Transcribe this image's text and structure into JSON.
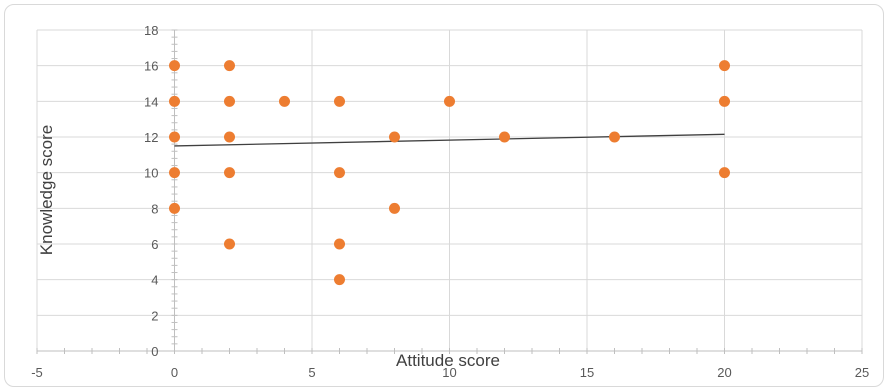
{
  "chart_data": {
    "type": "scatter",
    "title": "",
    "xlabel": "Attitude score",
    "ylabel": "Knowledge score",
    "xlim": [
      -5,
      25
    ],
    "ylim": [
      0,
      18
    ],
    "x_ticks": [
      -5,
      0,
      5,
      10,
      15,
      20,
      25
    ],
    "y_ticks": [
      0,
      2,
      4,
      6,
      8,
      10,
      12,
      14,
      16,
      18
    ],
    "grid": true,
    "legend": "none",
    "marker_color": "#ED7D31",
    "trendline_color": "#404040",
    "series": [
      {
        "x": [
          0,
          0,
          0,
          0,
          0,
          2,
          2,
          2,
          2,
          2,
          4,
          6,
          6,
          6,
          6,
          8,
          8,
          10,
          12,
          16,
          20,
          20,
          20
        ],
        "y": [
          16,
          14,
          12,
          10,
          8,
          16,
          14,
          12,
          10,
          6,
          14,
          14,
          10,
          6,
          4,
          12,
          8,
          14,
          12,
          12,
          16,
          14,
          10
        ]
      }
    ],
    "trendline": {
      "type": "linear",
      "x": [
        0,
        20
      ],
      "y": [
        11.5,
        12.15
      ]
    }
  }
}
